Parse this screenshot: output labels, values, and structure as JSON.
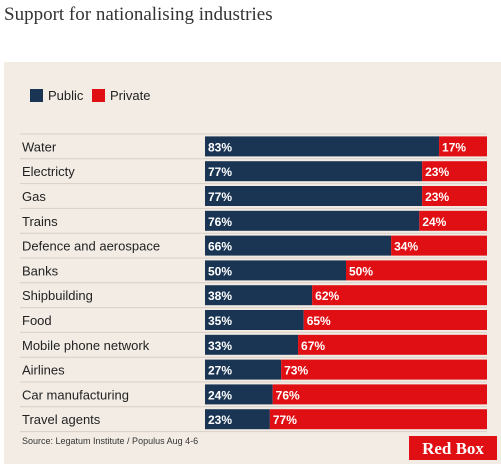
{
  "chart_data": {
    "type": "bar",
    "stacked": true,
    "orientation": "horizontal",
    "title": "Support for nationalising industries",
    "categories": [
      "Water",
      "Electricty",
      "Gas",
      "Trains",
      "Defence and aerospace",
      "Banks",
      "Shipbuilding",
      "Food",
      "Mobile phone network",
      "Airlines",
      "Car manufacturing",
      "Travel agents"
    ],
    "series": [
      {
        "name": "Public",
        "color": "#1a3554",
        "values": [
          83,
          77,
          77,
          76,
          66,
          50,
          38,
          35,
          33,
          27,
          24,
          23
        ]
      },
      {
        "name": "Private",
        "color": "#e00f13",
        "values": [
          17,
          23,
          23,
          24,
          34,
          50,
          62,
          65,
          67,
          73,
          76,
          77
        ]
      }
    ],
    "value_suffix": "%",
    "xlim": [
      0,
      100
    ],
    "legend_position": "top-left",
    "source": "Source: Legatum Institute / Populus Aug 4-6"
  },
  "brand": {
    "label": "Red Box",
    "color": "#e00f13"
  },
  "colors": {
    "panel_background": "#f3ece5",
    "row_divider": "#d8cfc6"
  }
}
